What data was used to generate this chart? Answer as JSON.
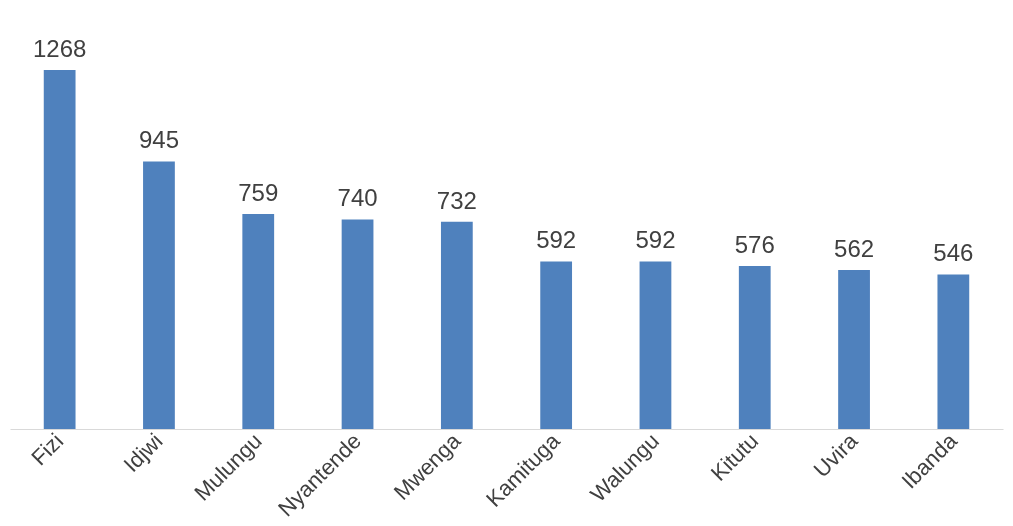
{
  "chart_data": {
    "type": "bar",
    "categories": [
      "Fizi",
      "Idjwi",
      "Mulungu",
      "Nyantende",
      "Mwenga",
      "Kamituga",
      "Walungu",
      "Kitutu",
      "Uvira",
      "Ibanda"
    ],
    "values": [
      1268,
      945,
      759,
      740,
      732,
      592,
      592,
      576,
      562,
      546
    ],
    "color": "#4f81bd",
    "data_labels": true
  }
}
